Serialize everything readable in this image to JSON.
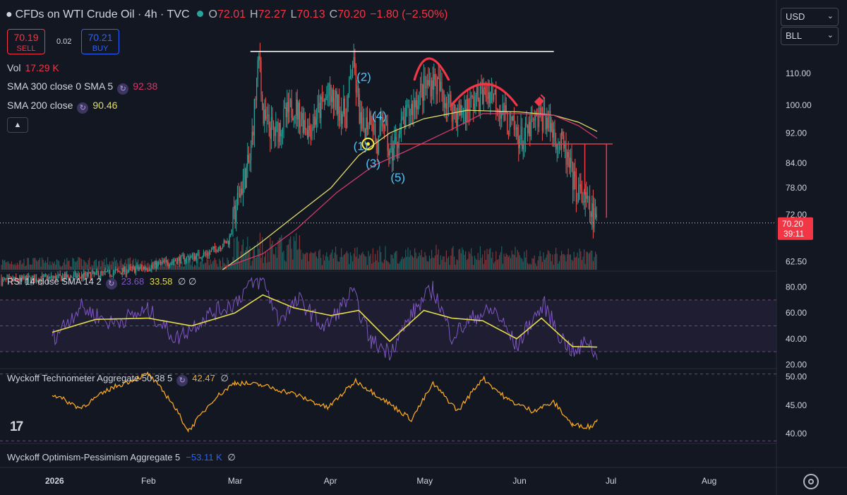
{
  "header": {
    "title": "CFDs on WTI Crude Oil · 4h · TVC",
    "ohlc": [
      {
        "k": "O",
        "v": "72.01"
      },
      {
        "k": "H",
        "v": "72.27"
      },
      {
        "k": "L",
        "v": "70.13"
      },
      {
        "k": "C",
        "v": "70.20"
      }
    ],
    "change": "−1.80 (−2.50%)"
  },
  "trade": {
    "sell_price": "70.19",
    "sell_label": "SELL",
    "spread": "0.02",
    "buy_price": "70.21",
    "buy_label": "BUY"
  },
  "indicators": {
    "vol_label": "Vol",
    "vol_value": "17.29 K",
    "sma300_label": "SMA 300 close 0 SMA 5",
    "sma300_value": "92.38",
    "sma200_label": "SMA 200 close",
    "sma200_value": "90.46",
    "rsi_label": "RSI 14 close SMA 14 2",
    "rsi_value1": "23.68",
    "rsi_value2": "33.58",
    "rsi_tail": "∅ ∅",
    "tech_label": "Wyckoff Technometer Aggregate 50 38 5",
    "tech_value": "42.47",
    "tech_tail": "∅",
    "opt_label": "Wyckoff Optimism-Pessimism Aggregate 5",
    "opt_value": "−53.11 K",
    "opt_tail": "∅"
  },
  "selectors": {
    "currency": "USD",
    "unit": "BLL"
  },
  "logo": "17",
  "colors": {
    "up": "#26a69a",
    "down": "#ef5350",
    "sma300": "#e0dd6a",
    "sma200": "#d13a6b",
    "rsi": "#7e57c2",
    "rsi_sma": "#e4dc4a",
    "techno": "#f5a623",
    "annotation": "#f23645",
    "price_tag": "#f23645",
    "wave_labels": "#4fc3f7",
    "background": "#131722"
  },
  "chart_data": [
    {
      "type": "candlestick",
      "title": "CFDs on WTI Crude Oil · 4h · TVC",
      "x_ticks": [
        "2026",
        "Feb",
        "Mar",
        "Apr",
        "May",
        "Jun",
        "Jul",
        "Aug"
      ],
      "y_ticks": [
        62.5,
        72.0,
        78.0,
        84.0,
        92.0,
        100.0,
        110.0
      ],
      "y_scale": "log",
      "ylim": [
        61,
        126
      ],
      "last_price": "70.20",
      "countdown": "39:11",
      "close_path": [
        {
          "x": "2026-01-01",
          "y": 59.5
        },
        {
          "x": "2026-01-10",
          "y": 59.8
        },
        {
          "x": "2026-01-20",
          "y": 60.4
        },
        {
          "x": "2026-02-01",
          "y": 61.5
        },
        {
          "x": "2026-02-10",
          "y": 62.8
        },
        {
          "x": "2026-02-20",
          "y": 64.0
        },
        {
          "x": "2026-02-27",
          "y": 66.5
        },
        {
          "x": "2026-03-03",
          "y": 78.0
        },
        {
          "x": "2026-03-06",
          "y": 85.0
        },
        {
          "x": "2026-03-09",
          "y": 117.5
        },
        {
          "x": "2026-03-10",
          "y": 96.0
        },
        {
          "x": "2026-03-14",
          "y": 92.0
        },
        {
          "x": "2026-03-20",
          "y": 100.0
        },
        {
          "x": "2026-03-25",
          "y": 93.0
        },
        {
          "x": "2026-03-31",
          "y": 103.0
        },
        {
          "x": "2026-04-06",
          "y": 97.0
        },
        {
          "x": "2026-04-08",
          "y": 114.0
        },
        {
          "x": "2026-04-11",
          "y": 92.0
        },
        {
          "x": "2026-04-14",
          "y": 98.0
        },
        {
          "x": "2026-04-16",
          "y": 87.5
        },
        {
          "x": "2026-04-18",
          "y": 96.0
        },
        {
          "x": "2026-04-20",
          "y": 85.5
        },
        {
          "x": "2026-04-25",
          "y": 96.0
        },
        {
          "x": "2026-04-30",
          "y": 104.0
        },
        {
          "x": "2026-05-04",
          "y": 108.0
        },
        {
          "x": "2026-05-08",
          "y": 102.0
        },
        {
          "x": "2026-05-12",
          "y": 97.0
        },
        {
          "x": "2026-05-18",
          "y": 102.0
        },
        {
          "x": "2026-05-23",
          "y": 104.5
        },
        {
          "x": "2026-05-28",
          "y": 95.0
        },
        {
          "x": "2026-06-02",
          "y": 90.0
        },
        {
          "x": "2026-06-05",
          "y": 94.0
        },
        {
          "x": "2026-06-09",
          "y": 97.0
        },
        {
          "x": "2026-06-12",
          "y": 92.0
        },
        {
          "x": "2026-06-15",
          "y": 88.0
        },
        {
          "x": "2026-06-17",
          "y": 83.0
        },
        {
          "x": "2026-06-19",
          "y": 78.0
        },
        {
          "x": "2026-06-22",
          "y": 75.0
        },
        {
          "x": "2026-06-24",
          "y": 72.5
        },
        {
          "x": "2026-06-26",
          "y": 70.2
        }
      ],
      "series": [
        {
          "name": "SMA 300 close 0 SMA 5",
          "last": 92.38,
          "points": [
            {
              "x": "2026-02-25",
              "y": 61.0
            },
            {
              "x": "2026-03-09",
              "y": 66.0
            },
            {
              "x": "2026-03-19",
              "y": 71.0
            },
            {
              "x": "2026-04-01",
              "y": 78.0
            },
            {
              "x": "2026-04-10",
              "y": 86.0
            },
            {
              "x": "2026-04-20",
              "y": 92.0
            },
            {
              "x": "2026-05-01",
              "y": 96.0
            },
            {
              "x": "2026-05-15",
              "y": 98.5
            },
            {
              "x": "2026-06-01",
              "y": 98.0
            },
            {
              "x": "2026-06-12",
              "y": 97.0
            },
            {
              "x": "2026-06-20",
              "y": 95.0
            },
            {
              "x": "2026-06-26",
              "y": 92.4
            }
          ]
        },
        {
          "name": "SMA 200 close",
          "last": 90.46,
          "points": [
            {
              "x": "2026-02-26",
              "y": 61.5
            },
            {
              "x": "2026-03-10",
              "y": 64.0
            },
            {
              "x": "2026-03-21",
              "y": 69.0
            },
            {
              "x": "2026-04-03",
              "y": 77.0
            },
            {
              "x": "2026-04-15",
              "y": 83.5
            },
            {
              "x": "2026-04-25",
              "y": 87.0
            },
            {
              "x": "2026-05-10",
              "y": 93.0
            },
            {
              "x": "2026-05-20",
              "y": 97.5
            },
            {
              "x": "2026-06-01",
              "y": 97.5
            },
            {
              "x": "2026-06-12",
              "y": 97.0
            },
            {
              "x": "2026-06-20",
              "y": 94.0
            },
            {
              "x": "2026-06-26",
              "y": 90.5
            }
          ]
        }
      ],
      "annotations": {
        "top_line": {
          "from": "2026-03-06",
          "to": "2026-06-12",
          "y": 117.5,
          "color": "#ffffff"
        },
        "neckline": {
          "from": "2026-04-20",
          "to": "2026-07-01",
          "y": 89.0,
          "color": "#f23645"
        },
        "wave_labels": [
          {
            "text": "(1)",
            "x": "2026-04-11",
            "y": 88.5
          },
          {
            "text": "(2)",
            "x": "2026-04-12",
            "y": 109.0
          },
          {
            "text": "(3)",
            "x": "2026-04-15",
            "y": 84.0
          },
          {
            "text": "(4)",
            "x": "2026-04-17",
            "y": 97.0
          },
          {
            "text": "(5)",
            "x": "2026-04-23",
            "y": 80.5
          }
        ],
        "arcs": [
          {
            "from": "2026-04-28",
            "peak": "2026-05-02",
            "to": "2026-05-09",
            "low": 108.0,
            "high": 116.0
          },
          {
            "from": "2026-05-10",
            "peak": "2026-05-21",
            "to": "2026-05-31",
            "low": 100.0,
            "high": 107.5
          }
        ],
        "marker_circle": {
          "x": "2026-04-13",
          "y": 89.0,
          "color": "#ffeb3b"
        }
      },
      "volume": {
        "label": "Vol",
        "last": "17.29 K"
      }
    },
    {
      "type": "line",
      "title": "RSI 14 close SMA 14 2",
      "y_ticks": [
        20.0,
        40.0,
        60.0,
        80.0
      ],
      "ylim": [
        18,
        88
      ],
      "bands": [
        30,
        50,
        70
      ],
      "series": [
        {
          "name": "RSI",
          "last": 23.68,
          "points": [
            {
              "x": "2026-01-01",
              "y": 40
            },
            {
              "x": "2026-01-10",
              "y": 65
            },
            {
              "x": "2026-01-20",
              "y": 52
            },
            {
              "x": "2026-02-01",
              "y": 62
            },
            {
              "x": "2026-02-10",
              "y": 40
            },
            {
              "x": "2026-02-20",
              "y": 58
            },
            {
              "x": "2026-03-01",
              "y": 68
            },
            {
              "x": "2026-03-05",
              "y": 80
            },
            {
              "x": "2026-03-10",
              "y": 86
            },
            {
              "x": "2026-03-15",
              "y": 55
            },
            {
              "x": "2026-03-22",
              "y": 70
            },
            {
              "x": "2026-03-30",
              "y": 48
            },
            {
              "x": "2026-04-08",
              "y": 76
            },
            {
              "x": "2026-04-14",
              "y": 38
            },
            {
              "x": "2026-04-20",
              "y": 30
            },
            {
              "x": "2026-04-28",
              "y": 62
            },
            {
              "x": "2026-05-04",
              "y": 79
            },
            {
              "x": "2026-05-10",
              "y": 42
            },
            {
              "x": "2026-05-18",
              "y": 58
            },
            {
              "x": "2026-05-24",
              "y": 62
            },
            {
              "x": "2026-05-31",
              "y": 34
            },
            {
              "x": "2026-06-05",
              "y": 55
            },
            {
              "x": "2026-06-09",
              "y": 66
            },
            {
              "x": "2026-06-14",
              "y": 42
            },
            {
              "x": "2026-06-19",
              "y": 28
            },
            {
              "x": "2026-06-23",
              "y": 40
            },
            {
              "x": "2026-06-26",
              "y": 23.7
            }
          ]
        },
        {
          "name": "SMA",
          "last": 33.58,
          "points": [
            {
              "x": "2026-01-01",
              "y": 45
            },
            {
              "x": "2026-01-15",
              "y": 55
            },
            {
              "x": "2026-02-01",
              "y": 56
            },
            {
              "x": "2026-02-15",
              "y": 50
            },
            {
              "x": "2026-03-01",
              "y": 60
            },
            {
              "x": "2026-03-10",
              "y": 74
            },
            {
              "x": "2026-03-20",
              "y": 64
            },
            {
              "x": "2026-04-01",
              "y": 58
            },
            {
              "x": "2026-04-10",
              "y": 62
            },
            {
              "x": "2026-04-20",
              "y": 38
            },
            {
              "x": "2026-05-01",
              "y": 62
            },
            {
              "x": "2026-05-10",
              "y": 56
            },
            {
              "x": "2026-05-20",
              "y": 54
            },
            {
              "x": "2026-05-31",
              "y": 40
            },
            {
              "x": "2026-06-08",
              "y": 56
            },
            {
              "x": "2026-06-18",
              "y": 34
            },
            {
              "x": "2026-06-26",
              "y": 33.6
            }
          ]
        }
      ]
    },
    {
      "type": "line",
      "title": "Wyckoff Technometer Aggregate 50 38 5",
      "y_ticks": [
        40.0,
        45.0,
        50.0
      ],
      "ylim": [
        38.5,
        51.2
      ],
      "series": [
        {
          "name": "Technometer",
          "last": 42.47,
          "points": [
            {
              "x": "2026-01-01",
              "y": 47
            },
            {
              "x": "2026-01-10",
              "y": 44.5
            },
            {
              "x": "2026-01-20",
              "y": 48
            },
            {
              "x": "2026-02-01",
              "y": 50.5
            },
            {
              "x": "2026-02-08",
              "y": 46
            },
            {
              "x": "2026-02-14",
              "y": 40.5
            },
            {
              "x": "2026-02-22",
              "y": 46
            },
            {
              "x": "2026-03-01",
              "y": 49
            },
            {
              "x": "2026-03-10",
              "y": 48.5
            },
            {
              "x": "2026-03-20",
              "y": 47
            },
            {
              "x": "2026-03-31",
              "y": 44.5
            },
            {
              "x": "2026-04-09",
              "y": 49.3
            },
            {
              "x": "2026-04-18",
              "y": 46
            },
            {
              "x": "2026-04-27",
              "y": 42.5
            },
            {
              "x": "2026-05-04",
              "y": 48.8
            },
            {
              "x": "2026-05-12",
              "y": 44
            },
            {
              "x": "2026-05-20",
              "y": 49.8
            },
            {
              "x": "2026-05-28",
              "y": 46
            },
            {
              "x": "2026-06-05",
              "y": 44
            },
            {
              "x": "2026-06-12",
              "y": 45.5
            },
            {
              "x": "2026-06-18",
              "y": 41.5
            },
            {
              "x": "2026-06-24",
              "y": 41.2
            },
            {
              "x": "2026-06-26",
              "y": 42.5
            }
          ]
        }
      ]
    }
  ]
}
